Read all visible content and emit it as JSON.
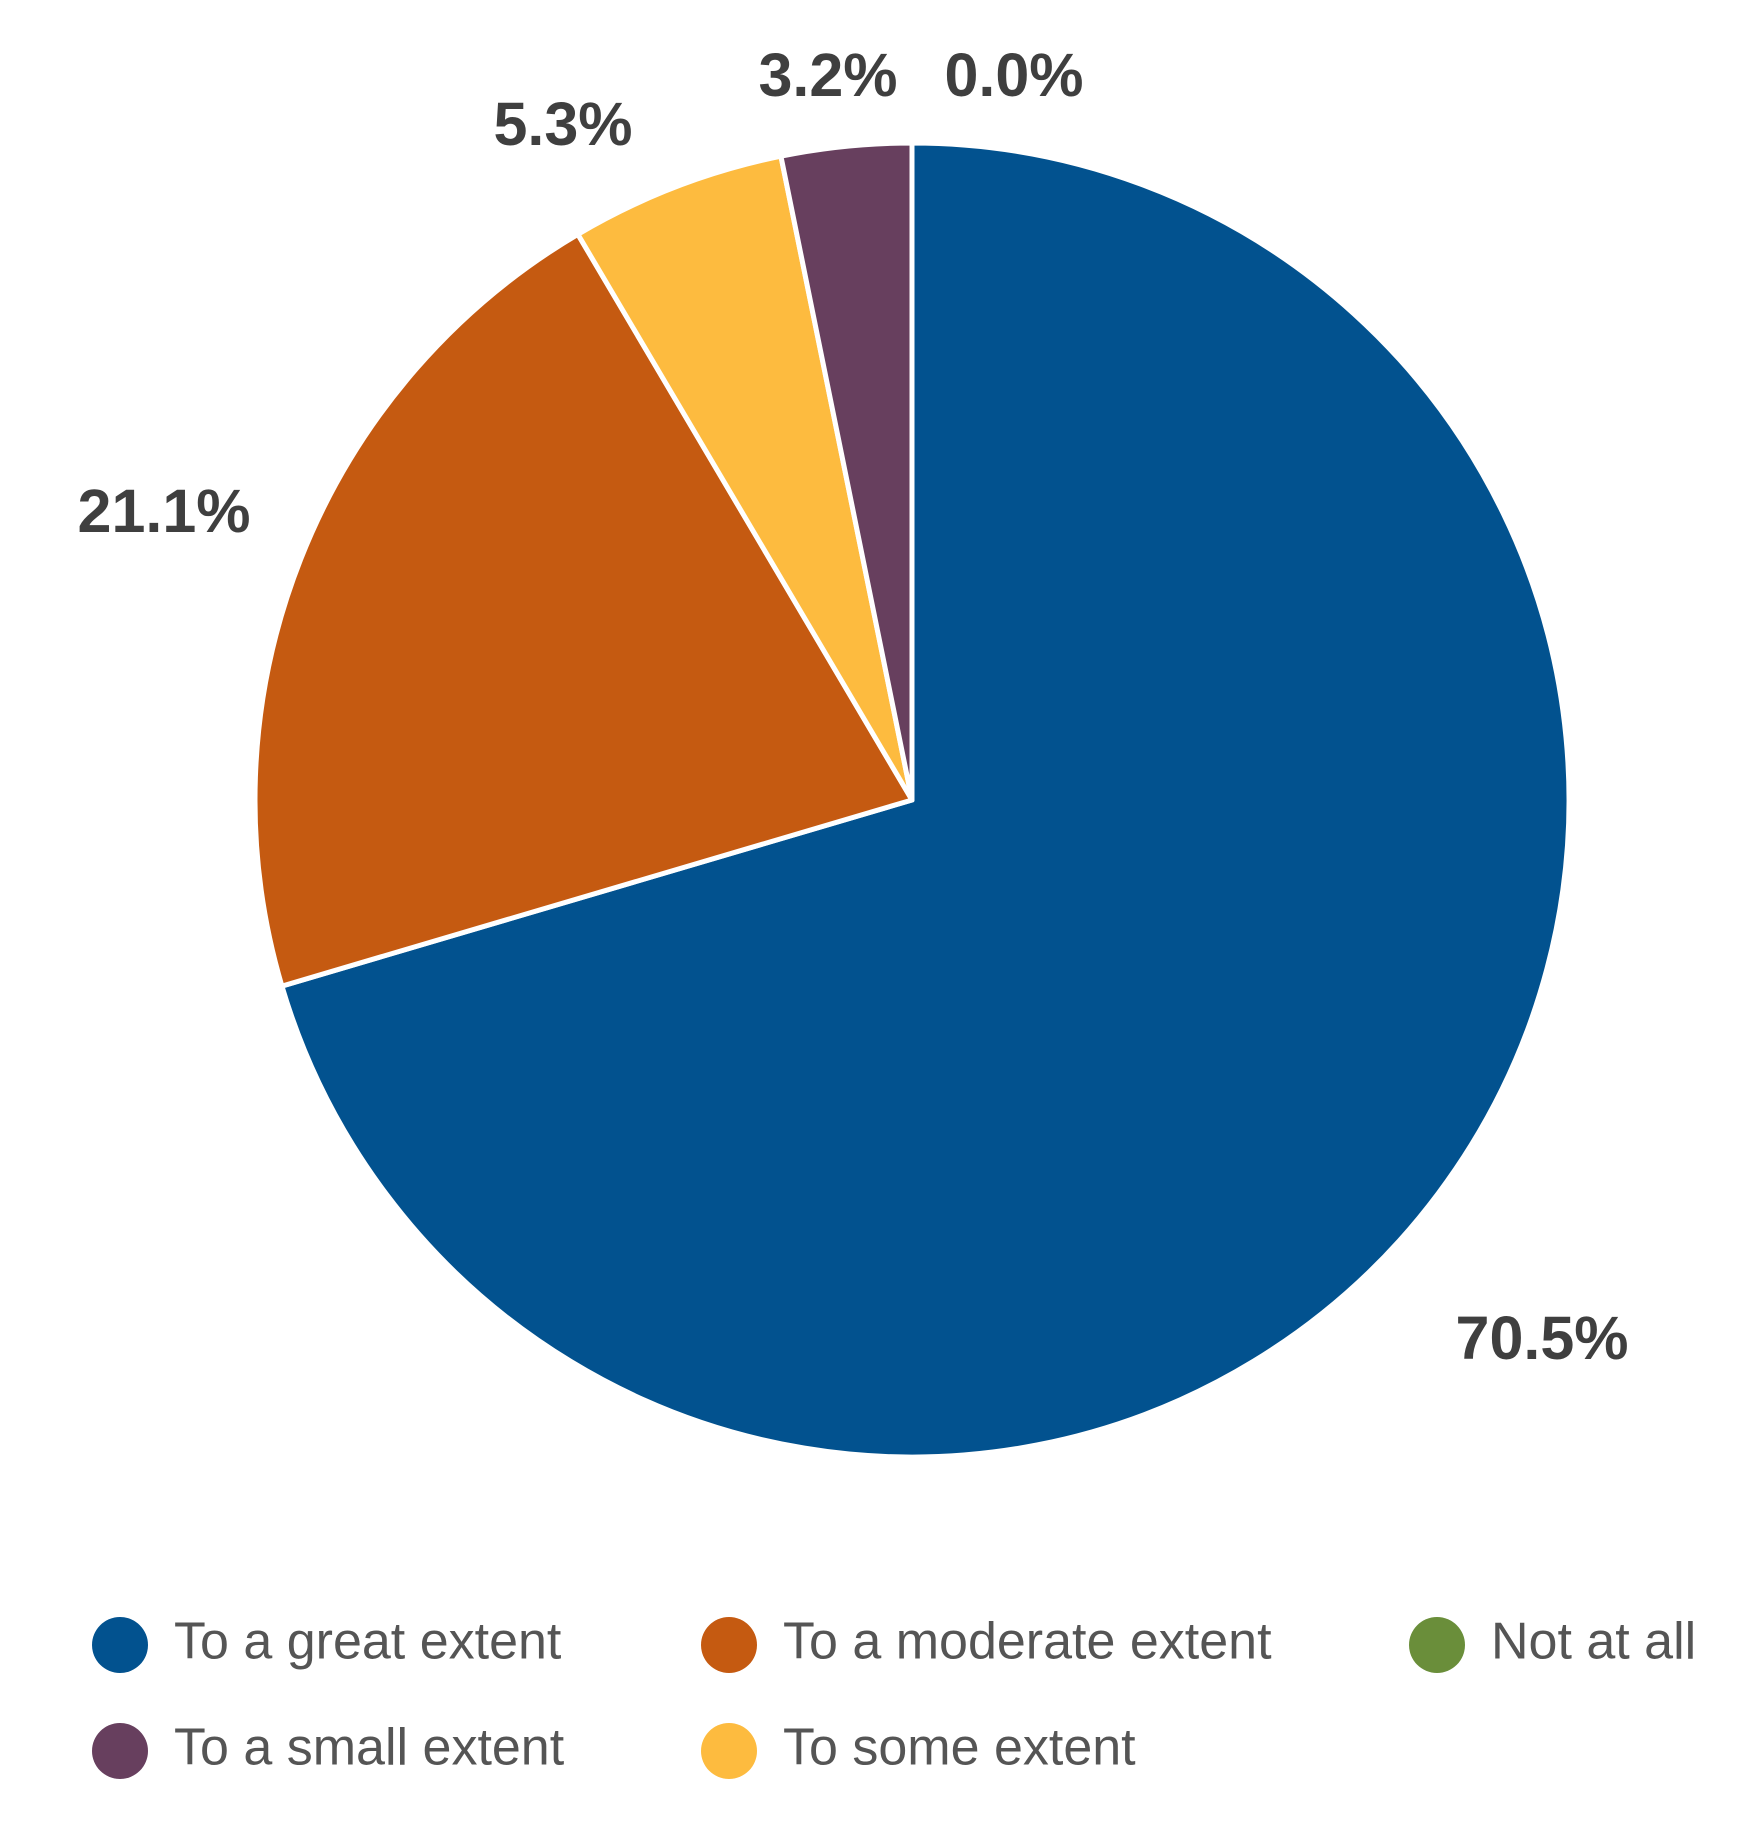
{
  "chart_data": {
    "type": "pie",
    "categories": [
      "To a great extent",
      "To a moderate extent",
      "To some extent",
      "To a small extent",
      "Not at all"
    ],
    "values": [
      70.5,
      21.1,
      5.3,
      3.2,
      0.0
    ],
    "value_labels": [
      "70.5%",
      "21.1%",
      "5.3%",
      "3.2%",
      "0.0%"
    ],
    "colors": [
      "#02528f",
      "#c55a11",
      "#fdbb3f",
      "#673f5e",
      "#6a8e3a"
    ]
  }
}
